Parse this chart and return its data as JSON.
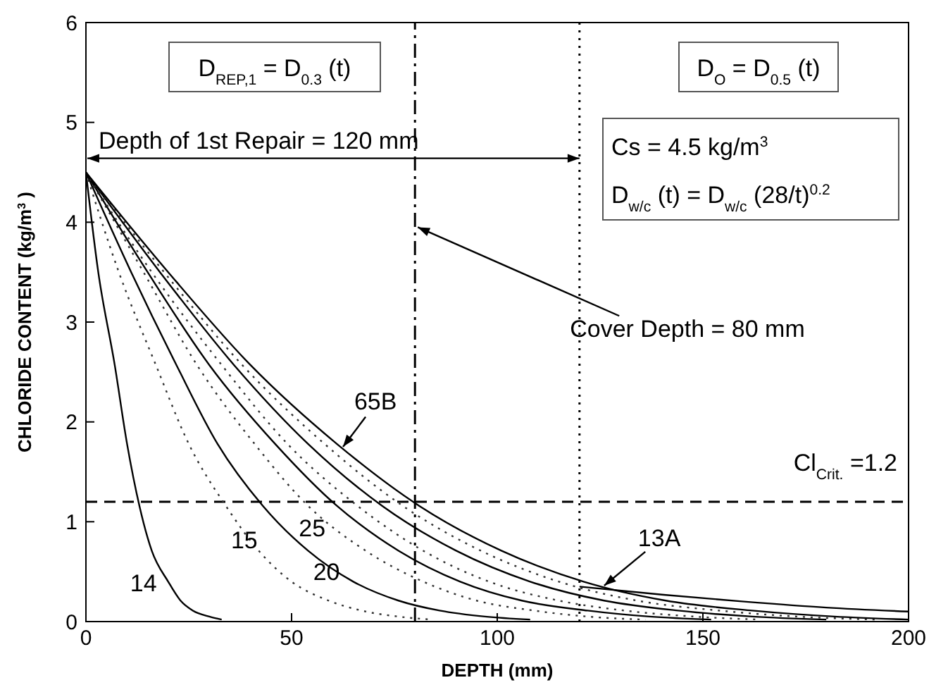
{
  "chart_data": {
    "type": "line",
    "xlabel": "DEPTH (mm)",
    "ylabel": "CHLORIDE CONTENT (kg/m$^{3}$)",
    "xlim": [
      0,
      200
    ],
    "xticks": [
      0,
      50,
      100,
      150,
      200
    ],
    "ylim": [
      0,
      6
    ],
    "yticks": [
      0,
      1,
      2,
      3,
      4,
      5,
      6
    ],
    "marker": "none",
    "series": [
      {
        "color": "#000000",
        "line_style": "solid",
        "x": [
          0,
          3,
          7,
          10,
          13,
          16,
          20,
          23,
          26,
          30,
          33
        ],
        "values": [
          4.5,
          3.5,
          2.57,
          1.78,
          1.16,
          0.71,
          0.4,
          0.21,
          0.11,
          0.05,
          0.02
        ]
      },
      {
        "color": "#333333",
        "line_style": "dotted",
        "x": [
          0,
          8,
          17,
          25,
          34,
          42,
          50,
          59,
          67,
          76,
          84
        ],
        "values": [
          4.5,
          3.5,
          2.57,
          1.78,
          1.16,
          0.71,
          0.4,
          0.21,
          0.11,
          0.05,
          0.02
        ]
      },
      {
        "color": "#000000",
        "line_style": "solid",
        "x": [
          0,
          11,
          22,
          32,
          43,
          54,
          65,
          76,
          86,
          97,
          108
        ],
        "values": [
          4.5,
          3.5,
          2.57,
          1.78,
          1.16,
          0.71,
          0.4,
          0.21,
          0.11,
          0.05,
          0.02
        ]
      },
      {
        "color": "#333333",
        "line_style": "dotted",
        "x": [
          0,
          14,
          27,
          41,
          54,
          68,
          82,
          95,
          109,
          122,
          136
        ],
        "values": [
          4.5,
          3.5,
          2.57,
          1.78,
          1.16,
          0.71,
          0.4,
          0.21,
          0.11,
          0.05,
          0.02
        ]
      },
      {
        "color": "#000000",
        "line_style": "solid",
        "x": [
          0,
          15,
          30,
          46,
          61,
          76,
          91,
          106,
          122,
          137,
          152
        ],
        "values": [
          4.5,
          3.5,
          2.57,
          1.78,
          1.16,
          0.71,
          0.4,
          0.21,
          0.11,
          0.05,
          0.02
        ]
      },
      {
        "color": "#333333",
        "line_style": "dotted",
        "x": [
          0,
          16,
          33,
          49,
          66,
          82,
          98,
          115,
          131,
          148,
          164
        ],
        "values": [
          4.5,
          3.5,
          2.57,
          1.78,
          1.16,
          0.71,
          0.4,
          0.21,
          0.11,
          0.05,
          0.02
        ]
      },
      {
        "color": "#000000",
        "line_style": "solid",
        "x": [
          0,
          18,
          36,
          54,
          72,
          90,
          108,
          126,
          144,
          162,
          180
        ],
        "values": [
          4.5,
          3.5,
          2.57,
          1.78,
          1.16,
          0.71,
          0.4,
          0.21,
          0.11,
          0.05,
          0.02
        ]
      },
      {
        "color": "#333333",
        "line_style": "dotted",
        "x": [
          0,
          19,
          38,
          58,
          77,
          96,
          115,
          134,
          154,
          173,
          192
        ],
        "values": [
          4.5,
          3.5,
          2.57,
          1.78,
          1.16,
          0.71,
          0.4,
          0.21,
          0.11,
          0.05,
          0.02
        ]
      },
      {
        "color": "#000000",
        "line_style": "solid",
        "x": [
          0,
          20,
          40,
          61,
          81,
          101,
          121,
          141,
          162,
          182,
          200
        ],
        "values": [
          4.5,
          3.5,
          2.57,
          1.78,
          1.16,
          0.71,
          0.4,
          0.21,
          0.11,
          0.05,
          0.02
        ]
      },
      {
        "color": "#000000",
        "line_style": "solid",
        "x": [
          120,
          140,
          160,
          180,
          200
        ],
        "values": [
          0.35,
          0.27,
          0.2,
          0.14,
          0.1
        ]
      }
    ],
    "ref_lines": [
      {
        "axis": "y",
        "value": 1.2,
        "label": "Cl$_{Crit.}$=1.2",
        "line_style": "dashed",
        "color": "#000000"
      },
      {
        "axis": "x",
        "value": 80,
        "label": "Cover Depth = 80 mm",
        "line_style": "dashed",
        "color": "#000000"
      },
      {
        "axis": "x",
        "value": 120,
        "line_style": "dotted",
        "color": "#000000"
      }
    ],
    "annotations": [
      "D$_{REP,1}$ = D$_{0.3}$(t)",
      "D$_{O}$ = D$_{0.5}$(t)",
      "Cs = 4.5 kg/m$^{3}$",
      "D$_{w/c}$(t) = D$_{w/c}$(28/t)$^{0.2}$",
      "14",
      "15",
      "20",
      "25",
      "65B",
      "13A",
      "Depth of 1st Repair = 120 mm"
    ]
  }
}
